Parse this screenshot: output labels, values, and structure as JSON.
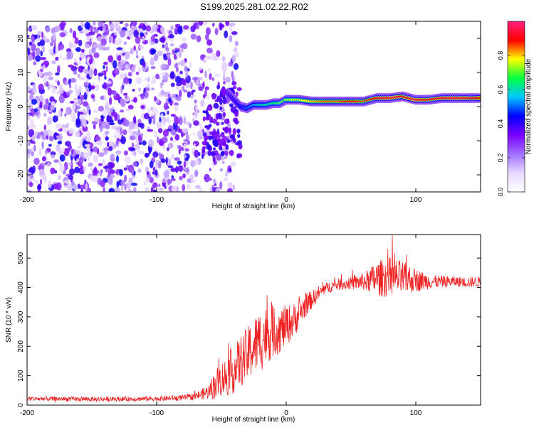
{
  "page_title": "S199.2025.281.02.22.R02",
  "colors": {
    "snr_line": "#ee2222",
    "cmap": [
      "#ffffff",
      "#e8d8ff",
      "#a070ff",
      "#7a00ff",
      "#0000ff",
      "#00c8ff",
      "#00ff40",
      "#ffff00",
      "#ff0000",
      "#ff2080"
    ]
  },
  "chart_data": [
    {
      "type": "heatmap",
      "xlabel": "Height of straight line (km)",
      "ylabel": "Frequency (Hz)",
      "xlim": [
        -200,
        150
      ],
      "ylim": [
        -25,
        25
      ],
      "xticks": [
        {
          "value": -200,
          "label": "-200"
        },
        {
          "value": -100,
          "label": "-100"
        },
        {
          "value": 0,
          "label": "0"
        },
        {
          "value": 100,
          "label": "100"
        }
      ],
      "yticks": [
        {
          "value": -20,
          "label": "-20"
        },
        {
          "value": -10,
          "label": "-10"
        },
        {
          "value": 0,
          "label": "0"
        },
        {
          "value": 10,
          "label": "10"
        },
        {
          "value": 20,
          "label": "20"
        }
      ],
      "noise_region_x": [
        -200,
        -48
      ],
      "ridge": {
        "x": [
          -45,
          -40,
          -35,
          -30,
          -25,
          -20,
          -15,
          -10,
          -5,
          0,
          10,
          20,
          30,
          40,
          50,
          60,
          70,
          80,
          90,
          100,
          110,
          120,
          130,
          140,
          150
        ],
        "freq": [
          4,
          2,
          0,
          -0.5,
          0.5,
          0.5,
          0.5,
          1,
          1,
          2,
          2,
          1.5,
          1.5,
          1.5,
          1.5,
          1.5,
          2.5,
          2.5,
          3,
          2,
          2,
          2.5,
          2.5,
          2.5,
          2.5
        ],
        "amplitude": [
          0.35,
          0.4,
          0.45,
          0.5,
          0.55,
          0.6,
          0.62,
          0.65,
          0.7,
          0.72,
          0.75,
          0.8,
          0.85,
          0.85,
          0.9,
          0.85,
          0.9,
          0.95,
          0.9,
          0.95,
          0.9,
          0.92,
          0.95,
          0.92,
          0.9
        ]
      },
      "colorbar": {
        "label": "Normalized spectral amplitude",
        "range": [
          0,
          1
        ],
        "ticks": [
          {
            "value": 0.0,
            "label": "0.0"
          },
          {
            "value": 0.2,
            "label": "0.2"
          },
          {
            "value": 0.4,
            "label": "0.4"
          },
          {
            "value": 0.6,
            "label": "0.6"
          },
          {
            "value": 0.8,
            "label": "0.8"
          }
        ]
      }
    },
    {
      "type": "line",
      "xlabel": "Height of straight line (km)",
      "ylabel": "SNR (10 * v/v)",
      "xlim": [
        -200,
        150
      ],
      "ylim": [
        0,
        580
      ],
      "xticks": [
        {
          "value": -200,
          "label": "-200"
        },
        {
          "value": -100,
          "label": "-100"
        },
        {
          "value": 0,
          "label": "0"
        },
        {
          "value": 100,
          "label": "100"
        }
      ],
      "yticks": [
        {
          "value": 0,
          "label": "0"
        },
        {
          "value": 100,
          "label": "100"
        },
        {
          "value": 200,
          "label": "200"
        },
        {
          "value": 300,
          "label": "300"
        },
        {
          "value": 400,
          "label": "400"
        },
        {
          "value": 500,
          "label": "500"
        }
      ],
      "series": [
        {
          "name": "SNR",
          "x": [
            -200,
            -150,
            -100,
            -80,
            -70,
            -60,
            -55,
            -50,
            -45,
            -40,
            -35,
            -30,
            -25,
            -20,
            -15,
            -10,
            -5,
            0,
            5,
            10,
            15,
            20,
            25,
            30,
            35,
            40,
            50,
            60,
            70,
            80,
            90,
            100,
            110,
            120,
            130,
            140,
            150
          ],
          "values": [
            22,
            20,
            22,
            25,
            30,
            45,
            70,
            90,
            100,
            120,
            150,
            170,
            200,
            220,
            240,
            250,
            255,
            270,
            285,
            310,
            340,
            360,
            380,
            395,
            405,
            410,
            415,
            420,
            430,
            435,
            430,
            425,
            420,
            420,
            420,
            418,
            420
          ],
          "spread": [
            8,
            8,
            8,
            10,
            12,
            25,
            50,
            60,
            70,
            80,
            90,
            95,
            100,
            110,
            100,
            90,
            80,
            70,
            60,
            50,
            40,
            30,
            25,
            20,
            20,
            20,
            22,
            30,
            60,
            70,
            60,
            40,
            25,
            20,
            18,
            18,
            18
          ]
        }
      ]
    }
  ]
}
